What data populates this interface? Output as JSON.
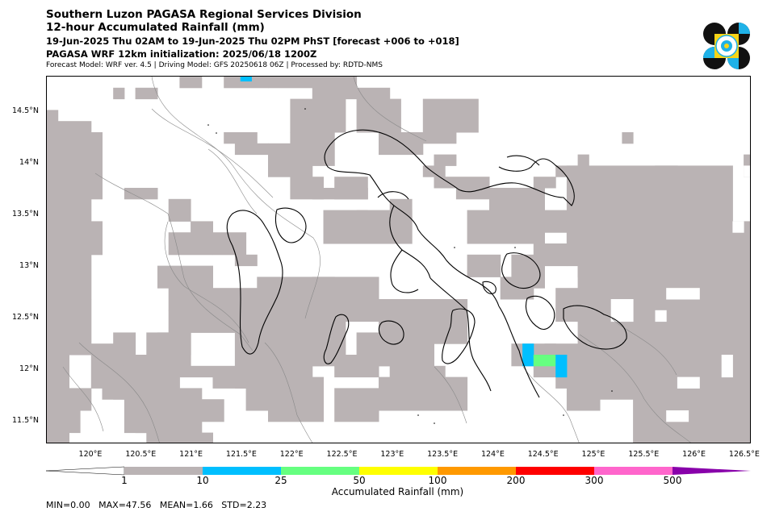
{
  "header": {
    "line1": "Southern Luzon PAGASA Regional Services Division",
    "line2": "12-hour Accumulated Rainfall (mm)",
    "line3": "19-Jun-2025 Thu 02AM to 19-Jun-2025 Thu 02PM PhST [forecast +006 to +018]",
    "line4": "PAGASA WRF 12km initialization: 2025/06/18 1200Z",
    "line5": "Forecast Model: WRF ver. 4.5 | Driving Model: GFS 20250618 06Z | Processed by: RDTD-NMS"
  },
  "logo": {
    "icon": "pagasa-logo-icon",
    "colors": [
      "#111111",
      "#1fb2e8",
      "#f7d417"
    ]
  },
  "map": {
    "x_ticks": [
      "120°E",
      "120.5°E",
      "121°E",
      "121.5°E",
      "122°E",
      "122.5°E",
      "123°E",
      "123.5°E",
      "124°E",
      "124.5°E",
      "125°E",
      "125.5°E",
      "126°E",
      "126.5°E"
    ],
    "y_ticks": [
      "14.5°N",
      "14°N",
      "13.5°N",
      "13°N",
      "12.5°N",
      "12°N",
      "11.5°N"
    ],
    "colors": {
      "gray": "#bab3b4",
      "cyan": "#00bfff",
      "green": "#66ff80",
      "coast": "#000000",
      "border": "#888888"
    }
  },
  "colorbar": {
    "title": "Accumulated Rainfall (mm)",
    "ticks": [
      "1",
      "10",
      "25",
      "50",
      "100",
      "200",
      "300",
      "500"
    ],
    "colors": [
      "#bab3b4",
      "#00bfff",
      "#66ff80",
      "#ffff00",
      "#ff9900",
      "#ff0000",
      "#ff66cc",
      "#8800aa"
    ],
    "extend_low_color": "#ffffff",
    "extend_high_color": "#660099"
  },
  "stats": {
    "text": "MIN=0.00   MAX=47.56   MEAN=1.66   STD=2.23"
  }
}
